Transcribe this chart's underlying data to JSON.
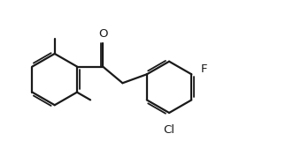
{
  "bg": "#ffffff",
  "lc": "#1a1a1a",
  "lw": 1.6,
  "lw_inner": 1.3,
  "fs": 9.5,
  "r": 0.92,
  "xlim": [
    0.0,
    10.0
  ],
  "ylim": [
    0.3,
    5.8
  ],
  "figsize": [
    3.23,
    1.77
  ],
  "dpi": 100,
  "O_label": "O",
  "F_label": "F",
  "Cl_label": "Cl"
}
